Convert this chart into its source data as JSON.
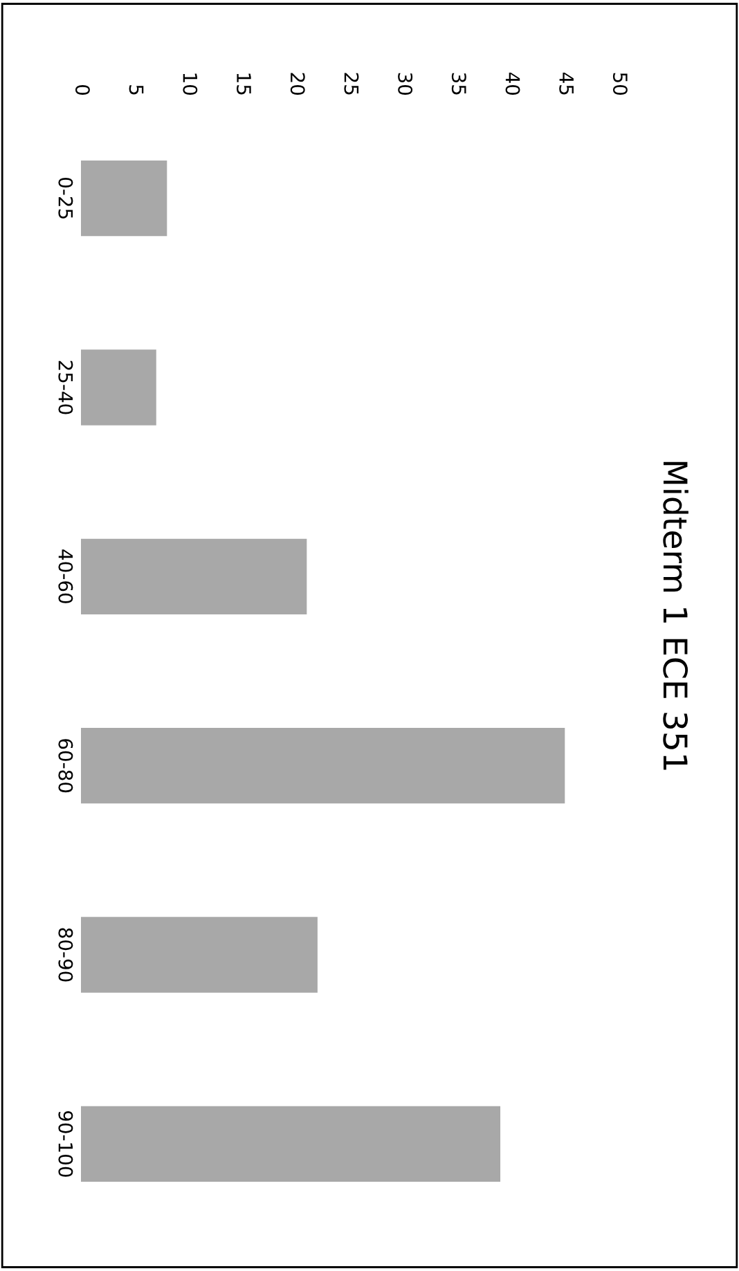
{
  "chart_data": {
    "type": "bar",
    "title": "Midterm 1 ECE 351",
    "orientation": "horizontal",
    "categories": [
      "0-25",
      "25-40",
      "40-60",
      "60-80",
      "80-90",
      "90-100"
    ],
    "values": [
      8,
      7,
      21,
      45,
      22,
      39
    ],
    "color": "#a8a8a8",
    "xlim": [
      0,
      50
    ],
    "xticks": [
      0,
      5,
      10,
      15,
      20,
      25,
      30,
      35,
      40,
      45,
      50
    ],
    "grid": false
  }
}
